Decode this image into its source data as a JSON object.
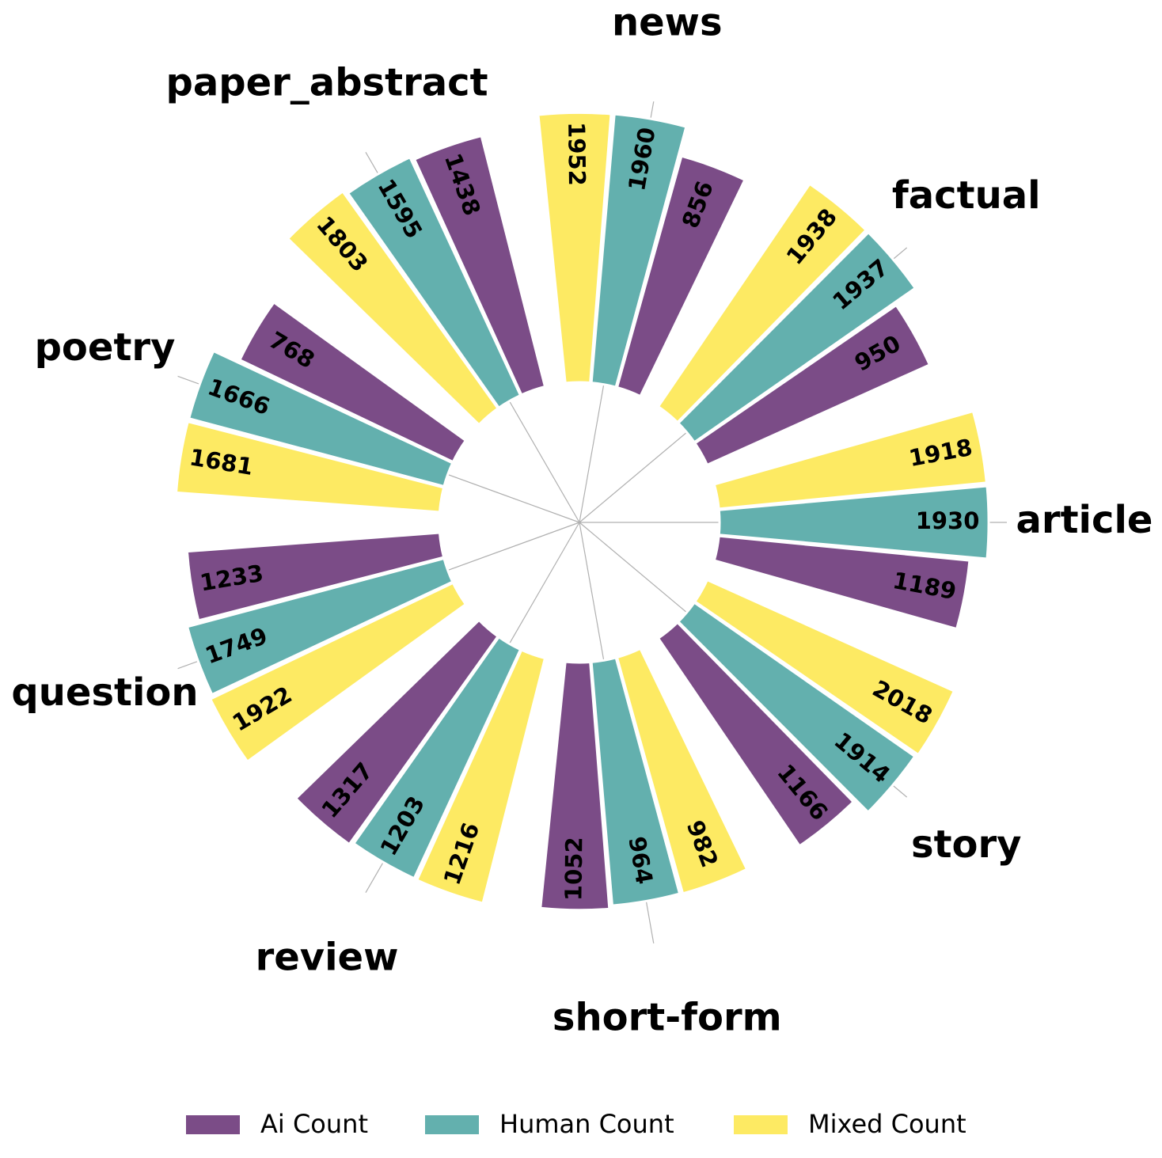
{
  "chart_data": {
    "type": "polar_bar",
    "categories": [
      "article",
      "factual",
      "news",
      "paper_abstract",
      "poetry",
      "question",
      "review",
      "short-form",
      "story"
    ],
    "series": [
      {
        "name": "Ai Count",
        "color": "#7b4c87",
        "values": [
          1189,
          950,
          856,
          1438,
          768,
          1233,
          1317,
          1052,
          1166
        ]
      },
      {
        "name": "Human Count",
        "color": "#63b0ae",
        "values": [
          1930,
          1937,
          1960,
          1595,
          1666,
          1749,
          1203,
          964,
          1914
        ]
      },
      {
        "name": "Mixed Count",
        "color": "#fdea63",
        "values": [
          1918,
          1938,
          1952,
          1803,
          1681,
          1922,
          1216,
          982,
          2018
        ]
      }
    ],
    "log": true,
    "ylim": [
      1,
      10000
    ],
    "grid": true,
    "legend": "bottom"
  }
}
